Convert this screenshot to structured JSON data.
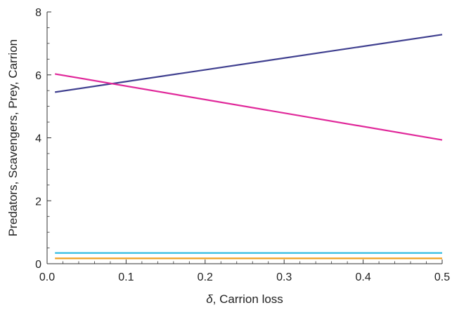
{
  "chart_data": {
    "type": "line",
    "title": "",
    "xlabel_symbol": "δ",
    "xlabel_text": ", Carrion loss",
    "ylabel": "Predators, Scavengers, Prey, Carrion",
    "xlim": [
      0.0,
      0.5
    ],
    "ylim": [
      0,
      8
    ],
    "x_ticks": [
      0.0,
      0.1,
      0.2,
      0.3,
      0.4,
      0.5
    ],
    "x_tick_labels": [
      "0.0",
      "0.1",
      "0.2",
      "0.3",
      "0.4",
      "0.5"
    ],
    "y_ticks": [
      0,
      2,
      4,
      6,
      8
    ],
    "y_tick_labels": [
      "0",
      "2",
      "4",
      "6",
      "8"
    ],
    "grid": false,
    "legend": "none",
    "series": [
      {
        "color": "#3f3f8f",
        "x": [
          0.01,
          0.5
        ],
        "y": [
          5.45,
          7.28
        ]
      },
      {
        "color": "#e0289a",
        "x": [
          0.01,
          0.5
        ],
        "y": [
          6.03,
          3.93
        ]
      },
      {
        "color": "#28b8e0",
        "x": [
          0.01,
          0.5
        ],
        "y": [
          0.34,
          0.34
        ]
      },
      {
        "color": "#f0a020",
        "x": [
          0.01,
          0.5
        ],
        "y": [
          0.17,
          0.17
        ]
      }
    ]
  }
}
